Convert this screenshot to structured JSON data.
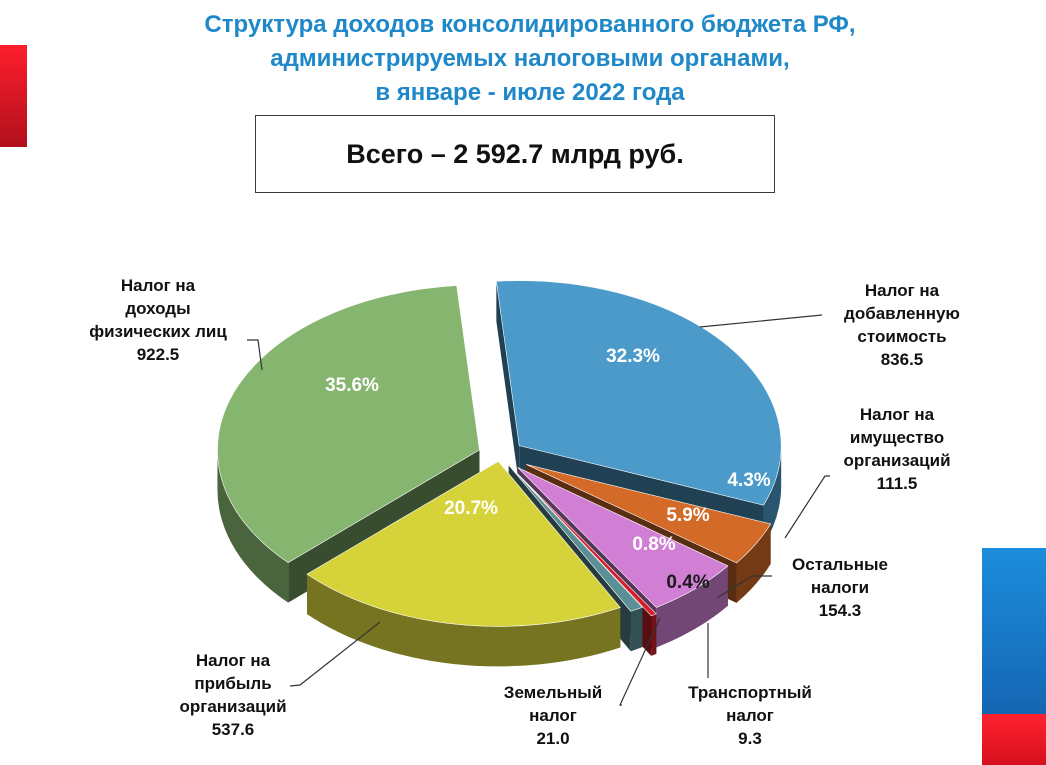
{
  "title": {
    "line1": "Структура доходов консолидированного бюджета РФ,",
    "line2": "администрируемых налоговыми органами,",
    "line3": "в январе - июле 2022 года"
  },
  "total": "Всего – 2 592.7 млрд руб.",
  "chart_data": {
    "type": "pie",
    "unit": "млрд руб.",
    "total": 2592.7,
    "slices": [
      {
        "label_lines": [
          "Налог на",
          "добавленную",
          "стоимость"
        ],
        "value": 836.5,
        "value_label": "836.5",
        "percent": 32.3,
        "percent_label": "32.3%",
        "color": "#4b9ac9"
      },
      {
        "label_lines": [
          "Налог на",
          "имущество",
          "организаций"
        ],
        "value": 111.5,
        "value_label": "111.5",
        "percent": 4.3,
        "percent_label": "4.3%",
        "color": "#d36a28"
      },
      {
        "label_lines": [
          "Остальные",
          "налоги"
        ],
        "value": 154.3,
        "value_label": "154.3",
        "percent": 5.9,
        "percent_label": "5.9%",
        "color": "#d07fd4"
      },
      {
        "label_lines": [
          "Транспортный",
          "налог"
        ],
        "value": 9.3,
        "value_label": "9.3",
        "percent": 0.4,
        "percent_label": "0.4%",
        "color": "#d01e2a"
      },
      {
        "label_lines": [
          "Земельный",
          "налог"
        ],
        "value": 21.0,
        "value_label": "21.0",
        "percent": 0.8,
        "percent_label": "0.8%",
        "color": "#5a8f96"
      },
      {
        "label_lines": [
          "Налог на",
          "прибыль",
          "организаций"
        ],
        "value": 537.6,
        "value_label": "537.6",
        "percent": 20.7,
        "percent_label": "20.7%",
        "color": "#d6d33a"
      },
      {
        "label_lines": [
          "Налог на",
          "доходы",
          "физических лиц"
        ],
        "value": 922.5,
        "value_label": "922.5",
        "percent": 35.6,
        "percent_label": "35.6%",
        "color": "#86b56f"
      }
    ]
  }
}
